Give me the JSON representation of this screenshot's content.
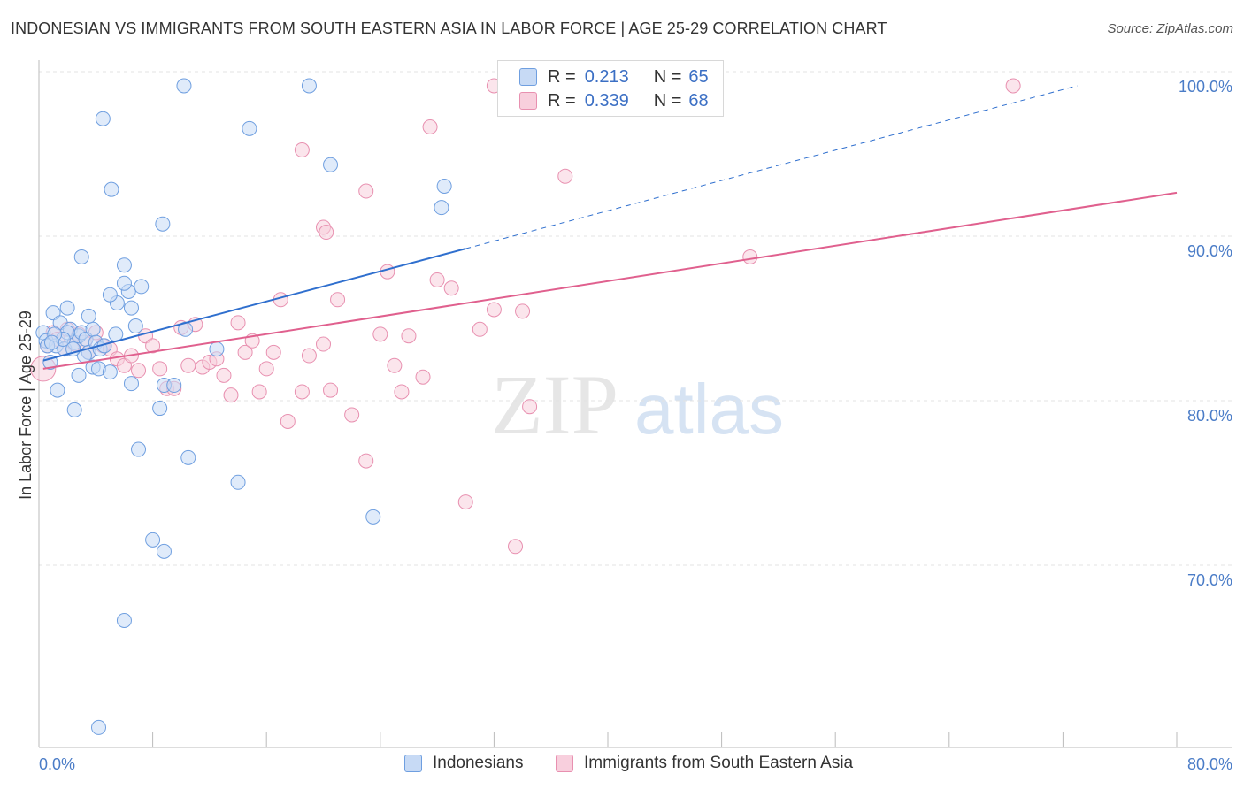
{
  "title": "INDONESIAN VS IMMIGRANTS FROM SOUTH EASTERN ASIA IN LABOR FORCE | AGE 25-29 CORRELATION CHART",
  "source": "Source: ZipAtlas.com",
  "watermark": {
    "zip": "ZIP",
    "atlas": "atlas"
  },
  "legend": {
    "rows": [
      {
        "r_label": "R =",
        "r_value": "0.213",
        "n_label": "N =",
        "n_value": "65"
      },
      {
        "r_label": "R =",
        "r_value": "0.339",
        "n_label": "N =",
        "n_value": "68"
      }
    ]
  },
  "bottom_legend": [
    "Indonesians",
    "Immigrants from South Eastern Asia"
  ],
  "colors": {
    "blue": "#6f9fe0",
    "blue_fill": "#c7daf5",
    "blue_line": "#2f6fce",
    "pink": "#e890b0",
    "pink_fill": "#f8cfdd",
    "pink_line": "#e0608e",
    "grid": "#e3e3e3"
  },
  "chart_data": {
    "type": "scatter",
    "title": "INDONESIAN VS IMMIGRANTS FROM SOUTH EASTERN ASIA IN LABOR FORCE | AGE 25-29 CORRELATION CHART",
    "xlabel": "",
    "ylabel": "In Labor Force | Age 25-29",
    "xlim": [
      0,
      80
    ],
    "ylim": [
      60,
      102
    ],
    "x_tick_labels": [
      "0.0%",
      "80.0%"
    ],
    "y_ticks": [
      70,
      80,
      90,
      100
    ],
    "y_tick_labels": [
      "70.0%",
      "80.0%",
      "90.0%",
      "100.0%"
    ],
    "series": [
      {
        "name": "Indonesians",
        "R": 0.213,
        "N": 65,
        "trend": {
          "x0": 0.3,
          "y0": 83.3,
          "x1": 30.0,
          "y1": 90.1,
          "dash_x1": 73.0,
          "dash_y1": 100.0
        },
        "points": [
          [
            0.3,
            85.0
          ],
          [
            0.5,
            84.5
          ],
          [
            0.8,
            83.2
          ],
          [
            1.0,
            86.2
          ],
          [
            1.2,
            84.2
          ],
          [
            1.5,
            85.6
          ],
          [
            1.8,
            84.0
          ],
          [
            2.2,
            85.2
          ],
          [
            2.5,
            84.4
          ],
          [
            2.8,
            84.8
          ],
          [
            3.0,
            85.0
          ],
          [
            3.3,
            84.6
          ],
          [
            3.5,
            83.8
          ],
          [
            3.8,
            85.2
          ],
          [
            4.0,
            84.4
          ],
          [
            4.3,
            84.0
          ],
          [
            1.3,
            81.5
          ],
          [
            2.8,
            82.4
          ],
          [
            3.8,
            82.9
          ],
          [
            4.2,
            82.8
          ],
          [
            5.0,
            82.6
          ],
          [
            6.5,
            81.9
          ],
          [
            2.0,
            86.5
          ],
          [
            3.5,
            86.0
          ],
          [
            5.5,
            86.8
          ],
          [
            6.5,
            86.5
          ],
          [
            5.0,
            87.3
          ],
          [
            6.3,
            87.5
          ],
          [
            7.2,
            87.8
          ],
          [
            6.0,
            88.0
          ],
          [
            6.0,
            89.1
          ],
          [
            3.0,
            89.6
          ],
          [
            2.5,
            80.3
          ],
          [
            8.5,
            80.4
          ],
          [
            6.8,
            85.4
          ],
          [
            10.3,
            85.2
          ],
          [
            12.5,
            84.0
          ],
          [
            8.8,
            81.8
          ],
          [
            9.5,
            81.8
          ],
          [
            7.0,
            77.9
          ],
          [
            10.5,
            77.4
          ],
          [
            14.0,
            75.9
          ],
          [
            8.0,
            72.4
          ],
          [
            8.8,
            71.7
          ],
          [
            6.0,
            67.5
          ],
          [
            4.2,
            61.0
          ],
          [
            23.5,
            73.8
          ],
          [
            4.5,
            98.0
          ],
          [
            5.1,
            93.7
          ],
          [
            8.7,
            91.6
          ],
          [
            10.2,
            100.0
          ],
          [
            14.8,
            97.4
          ],
          [
            19.0,
            100.0
          ],
          [
            20.5,
            95.2
          ],
          [
            28.5,
            93.9
          ],
          [
            28.3,
            92.6
          ],
          [
            2.0,
            85.0
          ],
          [
            0.6,
            84.2
          ],
          [
            1.7,
            84.6
          ],
          [
            3.2,
            83.6
          ],
          [
            4.6,
            84.2
          ],
          [
            5.4,
            84.9
          ],
          [
            2.4,
            84.0
          ],
          [
            1.1,
            84.9
          ],
          [
            0.9,
            84.4
          ]
        ]
      },
      {
        "name": "Immigrants from South Eastern Asia",
        "R": 0.339,
        "N": 68,
        "trend": {
          "x0": 0.3,
          "y0": 82.8,
          "x1": 80.0,
          "y1": 93.5
        },
        "points": [
          [
            0.3,
            82.8
          ],
          [
            0.6,
            84.2
          ],
          [
            1.0,
            85.0
          ],
          [
            1.3,
            84.6
          ],
          [
            1.8,
            84.0
          ],
          [
            2.0,
            85.2
          ],
          [
            2.5,
            84.3
          ],
          [
            2.8,
            84.9
          ],
          [
            3.2,
            84.4
          ],
          [
            3.5,
            83.8
          ],
          [
            4.0,
            85.0
          ],
          [
            4.5,
            84.2
          ],
          [
            5.0,
            84.0
          ],
          [
            5.5,
            83.4
          ],
          [
            6.0,
            83.0
          ],
          [
            6.5,
            83.6
          ],
          [
            7.0,
            82.7
          ],
          [
            7.5,
            84.8
          ],
          [
            8.0,
            84.2
          ],
          [
            8.5,
            82.8
          ],
          [
            9.0,
            81.6
          ],
          [
            9.5,
            81.6
          ],
          [
            10.0,
            85.3
          ],
          [
            10.5,
            83.0
          ],
          [
            11.0,
            85.5
          ],
          [
            11.5,
            82.9
          ],
          [
            12.0,
            83.2
          ],
          [
            12.5,
            83.4
          ],
          [
            13.0,
            82.4
          ],
          [
            13.5,
            81.2
          ],
          [
            14.0,
            85.6
          ],
          [
            14.5,
            83.8
          ],
          [
            15.0,
            84.5
          ],
          [
            15.5,
            81.4
          ],
          [
            16.0,
            82.8
          ],
          [
            16.5,
            83.8
          ],
          [
            17.0,
            87.0
          ],
          [
            17.5,
            79.6
          ],
          [
            18.5,
            81.4
          ],
          [
            19.0,
            83.6
          ],
          [
            20.0,
            84.3
          ],
          [
            20.5,
            81.5
          ],
          [
            21.0,
            87.0
          ],
          [
            22.0,
            80.0
          ],
          [
            23.0,
            77.2
          ],
          [
            24.0,
            84.9
          ],
          [
            24.5,
            88.7
          ],
          [
            25.0,
            83.0
          ],
          [
            25.5,
            81.4
          ],
          [
            26.0,
            84.8
          ],
          [
            27.0,
            82.3
          ],
          [
            28.0,
            88.2
          ],
          [
            29.0,
            87.7
          ],
          [
            30.0,
            74.7
          ],
          [
            31.0,
            85.2
          ],
          [
            32.0,
            86.4
          ],
          [
            34.0,
            86.3
          ],
          [
            34.5,
            80.5
          ],
          [
            33.5,
            72.0
          ],
          [
            23.0,
            93.6
          ],
          [
            20.0,
            91.4
          ],
          [
            20.2,
            91.1
          ],
          [
            18.5,
            96.1
          ],
          [
            27.5,
            97.5
          ],
          [
            32.0,
            100.0
          ],
          [
            37.0,
            94.5
          ],
          [
            50.0,
            89.6
          ],
          [
            68.5,
            100.0
          ]
        ]
      }
    ]
  }
}
